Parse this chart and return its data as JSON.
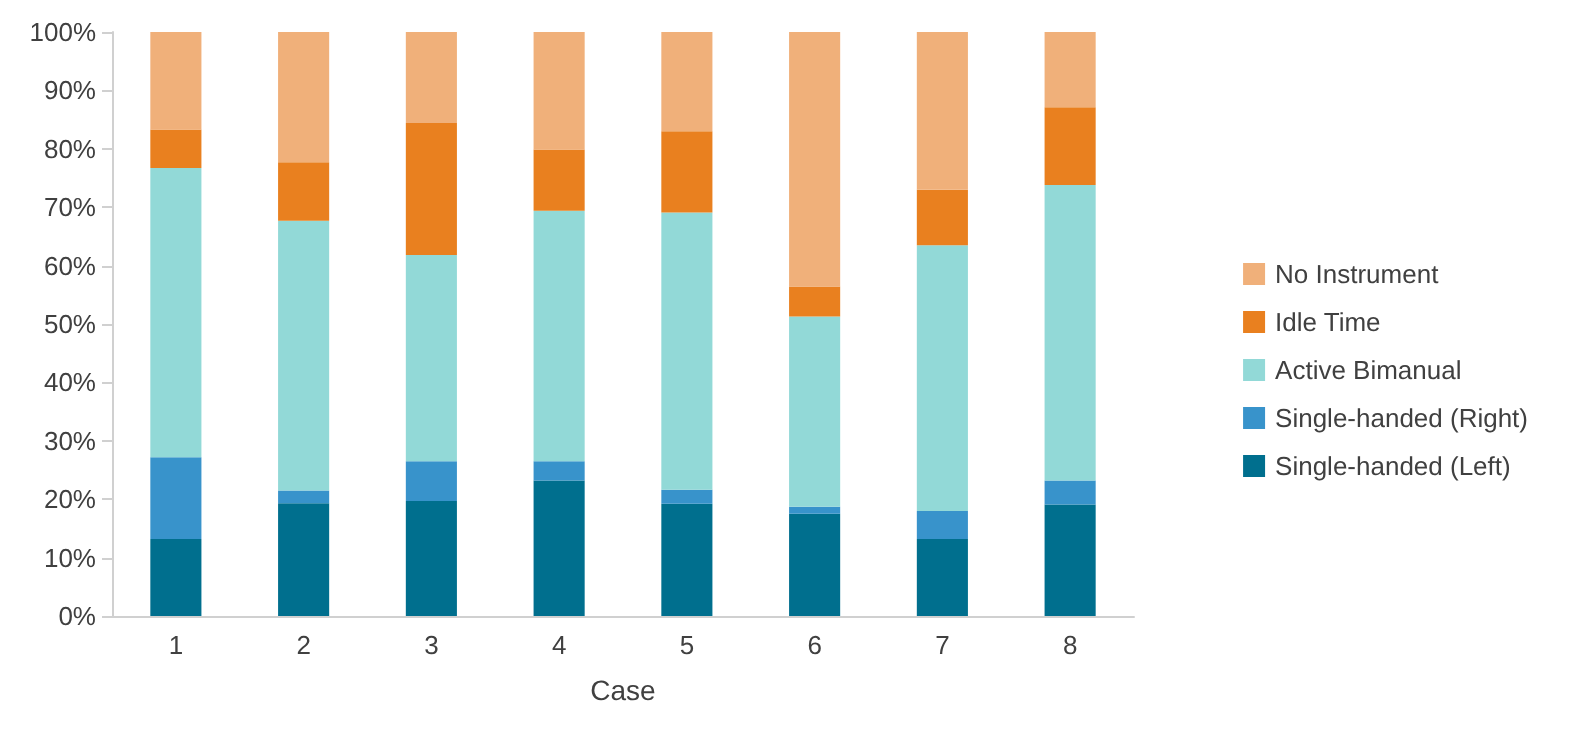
{
  "chart_data": {
    "type": "bar",
    "stacked": true,
    "xlabel": "Case",
    "categories": [
      "1",
      "2",
      "3",
      "4",
      "5",
      "6",
      "7",
      "8"
    ],
    "series": [
      {
        "name": "Single-handed (Left)",
        "color": "#006f8e",
        "values": [
          13.2,
          19.3,
          19.7,
          23.2,
          19.2,
          17.5,
          13.2,
          19.1
        ]
      },
      {
        "name": "Single-handed (Right)",
        "color": "#3893cb",
        "values": [
          14,
          2.2,
          6.8,
          3.3,
          2.4,
          1.2,
          4.8,
          4.1
        ]
      },
      {
        "name": "Active Bimanual",
        "color": "#92d9d7",
        "values": [
          49.5,
          46.2,
          35.3,
          42.9,
          47.5,
          32.6,
          45.5,
          50.6
        ]
      },
      {
        "name": "Idle Time",
        "color": "#e9801f",
        "values": [
          6.6,
          10,
          22.6,
          10.5,
          13.9,
          5.1,
          9.5,
          13.3
        ]
      },
      {
        "name": "No Instrument",
        "color": "#f0b07a",
        "values": [
          16.7,
          22.3,
          15.6,
          20.1,
          17,
          43.6,
          27,
          12.9
        ]
      }
    ],
    "ylim": [
      0,
      100
    ],
    "yticks": [
      {
        "value": 0,
        "label": "0%"
      },
      {
        "value": 10,
        "label": "10%"
      },
      {
        "value": 20,
        "label": "20%"
      },
      {
        "value": 30,
        "label": "30%"
      },
      {
        "value": 40,
        "label": "40%"
      },
      {
        "value": 50,
        "label": "50%"
      },
      {
        "value": 60,
        "label": "60%"
      },
      {
        "value": 70,
        "label": "70%"
      },
      {
        "value": 80,
        "label": "80%"
      },
      {
        "value": 90,
        "label": "90%"
      },
      {
        "value": 100,
        "label": "100%"
      }
    ],
    "grid": false,
    "legend": "right"
  }
}
